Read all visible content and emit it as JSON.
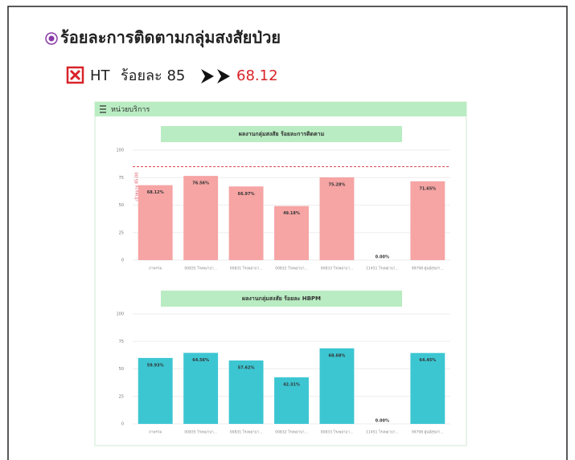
{
  "slide": {
    "title": "ร้อยละการติดตามกลุ่มสงสัยป่วย",
    "indicator": "HT",
    "target_text": "ร้อยละ 85",
    "result": "68.12",
    "panel_title": "หน่วยบริการ"
  },
  "chart_data": [
    {
      "type": "bar",
      "title": "ผลงานกลุ่มสงสัย ร้อยละการติดตาม",
      "categories": [
        "ภาพรวม",
        "00835 โรงพยาบา...",
        "00831 โรงพยาบา...",
        "00832 โรงพยาบา...",
        "00833 โรงพยาบา...",
        "11451 โรงพยาบา...",
        "99798 ศูนย์สุขภา..."
      ],
      "values": [
        68.12,
        76.56,
        66.97,
        49.18,
        75.28,
        0,
        71.65
      ],
      "value_labels": [
        "68.12%",
        "76.56%",
        "66.97%",
        "49.18%",
        "75.28%",
        "0.00%",
        "71.65%"
      ],
      "color": "#f6a4a4",
      "ylim": [
        0,
        100
      ],
      "yticks": [
        0,
        25,
        50,
        75,
        100
      ],
      "grid": true,
      "target": 85,
      "target_label": "เป้าหมาย 85.00",
      "target_color": "#e0566a"
    },
    {
      "type": "bar",
      "title": "ผลงานกลุ่มสงสัย ร้อยละ HBPM",
      "categories": [
        "ภาพรวม",
        "00835 โรงพยาบา...",
        "00831 โรงพยาบา...",
        "00832 โรงพยาบา...",
        "00833 โรงพยาบา...",
        "11451 โรงพยาบา...",
        "99798 ศูนย์สุขภา..."
      ],
      "values": [
        59.93,
        64.56,
        57.62,
        42.31,
        68.68,
        0,
        64.45
      ],
      "value_labels": [
        "59.93%",
        "64.56%",
        "57.62%",
        "42.31%",
        "68.68%",
        "0.00%",
        "64.45%"
      ],
      "color": "#3cc6d2",
      "ylim": [
        0,
        100
      ],
      "yticks": [
        0,
        25,
        50,
        75,
        100
      ],
      "grid": true
    }
  ]
}
